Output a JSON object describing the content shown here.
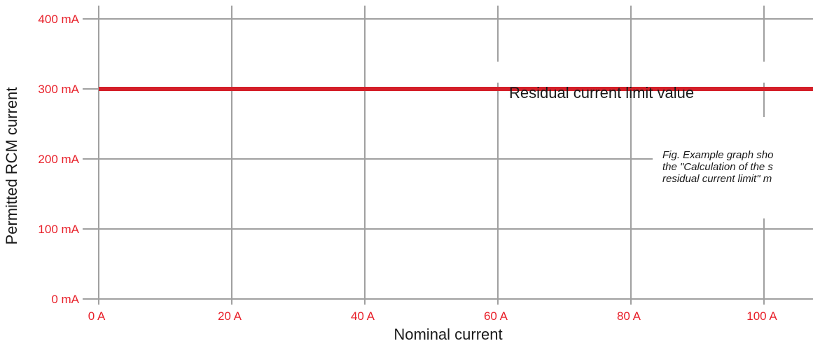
{
  "chart_data": {
    "type": "line",
    "title": "",
    "xlabel": "Nominal current",
    "ylabel": "Permitted RCM current",
    "xlim": [
      0,
      108
    ],
    "ylim": [
      0,
      400
    ],
    "x_ticks": [
      {
        "value": 0,
        "label": "0 A"
      },
      {
        "value": 20,
        "label": "20 A"
      },
      {
        "value": 40,
        "label": "40 A"
      },
      {
        "value": 60,
        "label": "60 A"
      },
      {
        "value": 80,
        "label": "80 A"
      },
      {
        "value": 100,
        "label": "100 A"
      }
    ],
    "y_ticks": [
      {
        "value": 0,
        "label": "0 mA"
      },
      {
        "value": 100,
        "label": "100 mA"
      },
      {
        "value": 200,
        "label": "200 mA"
      },
      {
        "value": 300,
        "label": "300 mA"
      },
      {
        "value": 400,
        "label": "400 mA"
      }
    ],
    "grid": true,
    "series": [
      {
        "x": [
          0,
          108
        ],
        "y": [
          300,
          300
        ],
        "color": "#d42029"
      }
    ],
    "annotations": [
      {
        "text": "Residual current limit value"
      }
    ],
    "caption_lines": [
      "Fig. Example graph sho",
      "the \"Calculation of the s",
      "residual current limit\" m"
    ]
  },
  "colors": {
    "grid": "#a0a0a0",
    "tick_label": "#e8202a",
    "series": "#d42029",
    "text": "#1a1a1a"
  }
}
